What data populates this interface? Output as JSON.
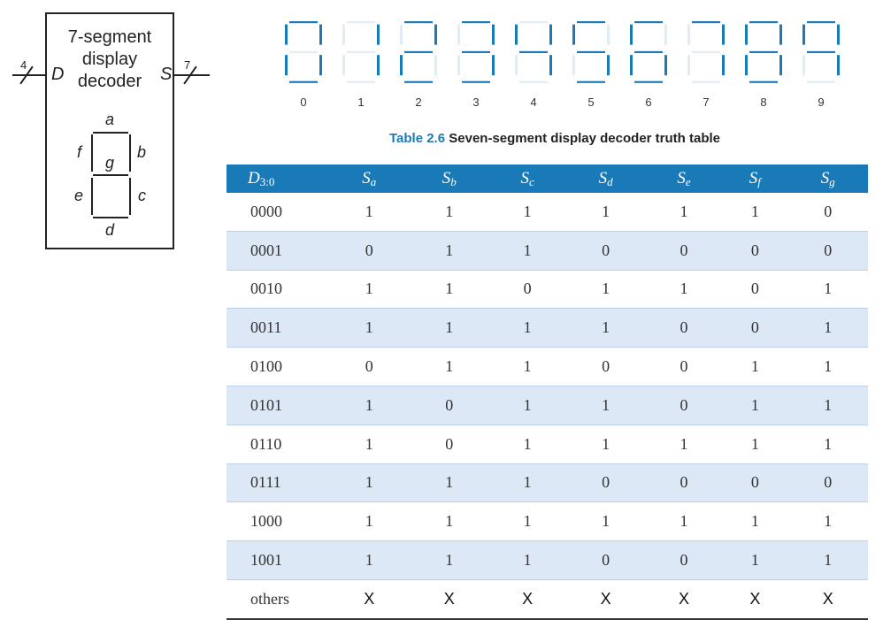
{
  "decoder": {
    "title_lines": [
      "7-segment",
      "display",
      "decoder"
    ],
    "input_port": "D",
    "output_port": "S",
    "input_width": "4",
    "output_width": "7",
    "segment_letters": {
      "a": "a",
      "b": "b",
      "c": "c",
      "d": "d",
      "e": "e",
      "f": "f",
      "g": "g"
    }
  },
  "digits": [
    {
      "label": "0",
      "on": [
        "a",
        "b",
        "c",
        "d",
        "e",
        "f"
      ]
    },
    {
      "label": "1",
      "on": [
        "b",
        "c"
      ]
    },
    {
      "label": "2",
      "on": [
        "a",
        "b",
        "g",
        "e",
        "d"
      ]
    },
    {
      "label": "3",
      "on": [
        "a",
        "b",
        "c",
        "d",
        "g"
      ]
    },
    {
      "label": "4",
      "on": [
        "f",
        "g",
        "b",
        "c"
      ]
    },
    {
      "label": "5",
      "on": [
        "a",
        "f",
        "g",
        "c",
        "d"
      ]
    },
    {
      "label": "6",
      "on": [
        "a",
        "f",
        "g",
        "e",
        "c",
        "d"
      ]
    },
    {
      "label": "7",
      "on": [
        "a",
        "b",
        "c"
      ]
    },
    {
      "label": "8",
      "on": [
        "a",
        "b",
        "c",
        "d",
        "e",
        "f",
        "g"
      ]
    },
    {
      "label": "9",
      "on": [
        "a",
        "b",
        "c",
        "f",
        "g"
      ]
    }
  ],
  "table": {
    "caption_number": "Table 2.6",
    "caption_text": "Seven-segment display decoder truth table",
    "headers": [
      {
        "main": "D",
        "sub": "3:0"
      },
      {
        "main": "S",
        "sub": "a"
      },
      {
        "main": "S",
        "sub": "b"
      },
      {
        "main": "S",
        "sub": "c"
      },
      {
        "main": "S",
        "sub": "d"
      },
      {
        "main": "S",
        "sub": "e"
      },
      {
        "main": "S",
        "sub": "f"
      },
      {
        "main": "S",
        "sub": "g"
      }
    ],
    "rows": [
      [
        "0000",
        "1",
        "1",
        "1",
        "1",
        "1",
        "1",
        "0"
      ],
      [
        "0001",
        "0",
        "1",
        "1",
        "0",
        "0",
        "0",
        "0"
      ],
      [
        "0010",
        "1",
        "1",
        "0",
        "1",
        "1",
        "0",
        "1"
      ],
      [
        "0011",
        "1",
        "1",
        "1",
        "1",
        "0",
        "0",
        "1"
      ],
      [
        "0100",
        "0",
        "1",
        "1",
        "0",
        "0",
        "1",
        "1"
      ],
      [
        "0101",
        "1",
        "0",
        "1",
        "1",
        "0",
        "1",
        "1"
      ],
      [
        "0110",
        "1",
        "0",
        "1",
        "1",
        "1",
        "1",
        "1"
      ],
      [
        "0111",
        "1",
        "1",
        "1",
        "0",
        "0",
        "0",
        "0"
      ],
      [
        "1000",
        "1",
        "1",
        "1",
        "1",
        "1",
        "1",
        "1"
      ],
      [
        "1001",
        "1",
        "1",
        "1",
        "0",
        "0",
        "1",
        "1"
      ],
      [
        "others",
        "X",
        "X",
        "X",
        "X",
        "X",
        "X",
        "X"
      ]
    ]
  },
  "colors": {
    "accent": "#1a7ab8",
    "row_alt": "#dce8f6",
    "segment_off": "#e3ecf4"
  }
}
